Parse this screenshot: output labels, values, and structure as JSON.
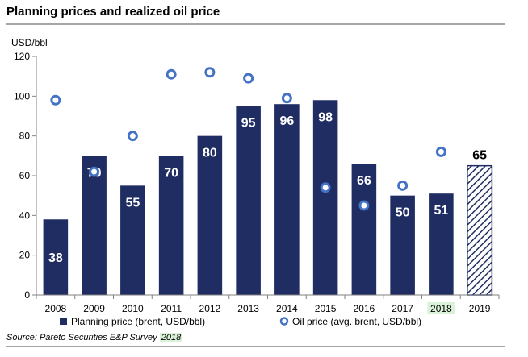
{
  "title": "Planning prices and realized oil price",
  "source": {
    "prefix": "Source: Pareto Securities E&P Survey ",
    "year": "2018"
  },
  "colors": {
    "bar": "#1f2d63",
    "dot": "#4472c4",
    "highlight": "#d9f2d9"
  },
  "chart_data": {
    "type": "bar",
    "title": "",
    "ylabel": "USD/bbl",
    "xlabel": "",
    "ylim": [
      0,
      120
    ],
    "yticks": [
      0,
      20,
      40,
      60,
      80,
      100,
      120
    ],
    "grid": false,
    "legend_position": "bottom",
    "categories": [
      "2008",
      "2009",
      "2010",
      "2011",
      "2012",
      "2013",
      "2014",
      "2015",
      "2016",
      "2017",
      "2018",
      "2019"
    ],
    "highlighted_category": "2018",
    "series": [
      {
        "name": "Planning price (brent, USD/bbl)",
        "type": "bar",
        "values": [
          38,
          70,
          55,
          70,
          80,
          95,
          96,
          98,
          66,
          50,
          51,
          65
        ],
        "labels": [
          "38",
          "70",
          "55",
          "70",
          "80",
          "95",
          "96",
          "98",
          "66",
          "50",
          "51",
          "65"
        ],
        "hatched": [
          false,
          false,
          false,
          false,
          false,
          false,
          false,
          false,
          false,
          false,
          false,
          true
        ]
      },
      {
        "name": "Oil price (avg. brent, USD/bbl)",
        "type": "scatter",
        "values": [
          98,
          62,
          80,
          111,
          112,
          109,
          99,
          54,
          45,
          55,
          72,
          null
        ]
      }
    ]
  }
}
